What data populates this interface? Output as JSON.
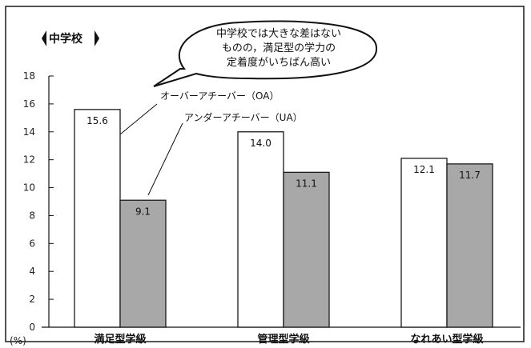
{
  "chart_data": {
    "type": "bar",
    "title": "中学校",
    "ylabel": "(%)",
    "ylim": [
      0,
      18
    ],
    "yticks": [
      0,
      2,
      4,
      6,
      8,
      10,
      12,
      14,
      16,
      18
    ],
    "categories": [
      "満足型学級",
      "管理型学級",
      "なれあい型学級"
    ],
    "series": [
      {
        "name": "オーバーアチーバー（OA）",
        "values": [
          15.6,
          14.0,
          12.1
        ],
        "value_labels": [
          "15.6",
          "14.0",
          "12.1"
        ],
        "color": "#ffffff"
      },
      {
        "name": "アンダーアチーバー（UA）",
        "values": [
          9.1,
          11.1,
          11.7
        ],
        "value_labels": [
          "9.1",
          "11.1",
          "11.7"
        ],
        "color": "#a8a8a8"
      }
    ],
    "grid": false,
    "legend": "callout-lines"
  },
  "callout": {
    "lines": [
      "中学校では大きな差はない",
      "ものの，満足型の学力の",
      "定着度がいちばん高い"
    ]
  },
  "colors": {
    "border": "#1a1a1a",
    "gray_bar": "#a8a8a8",
    "white_bar": "#ffffff"
  }
}
